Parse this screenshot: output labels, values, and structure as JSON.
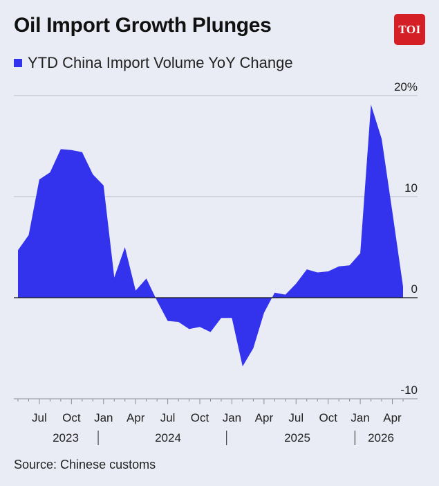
{
  "header": {
    "title": "Oil Import Growth Plunges",
    "logo_text": "TOI"
  },
  "source": "Source: Chinese customs",
  "chart_data": {
    "type": "area",
    "series": [
      {
        "name": "YTD China Import Volume YoY Change",
        "color": "#3333ee",
        "values": [
          4.7,
          6.2,
          11.7,
          12.4,
          14.7,
          14.6,
          14.4,
          12.2,
          11.1,
          2.0,
          5.0,
          0.7,
          1.9,
          -0.3,
          -2.3,
          -2.4,
          -3.1,
          -2.9,
          -3.4,
          -2.0,
          -2.0,
          -6.8,
          -5.0,
          -1.5,
          0.5,
          0.3,
          1.4,
          2.8,
          2.5,
          2.6,
          3.1,
          3.2,
          4.4,
          19.1,
          15.7,
          8.5,
          1.1
        ]
      }
    ],
    "x_start": "2023-05",
    "x_end": "2026-05",
    "ylim": [
      -10,
      20
    ],
    "yticks": [
      "-10",
      "0",
      "10",
      "20%"
    ],
    "month_ticks": [
      "Jul",
      "Oct",
      "Jan",
      "Apr",
      "Jul",
      "Oct",
      "Jan",
      "Apr",
      "Jul",
      "Oct",
      "Jan",
      "Apr"
    ],
    "years": [
      "2023",
      "2024",
      "2025",
      "2026"
    ],
    "grid": "horizontal",
    "legend": "top-left"
  }
}
